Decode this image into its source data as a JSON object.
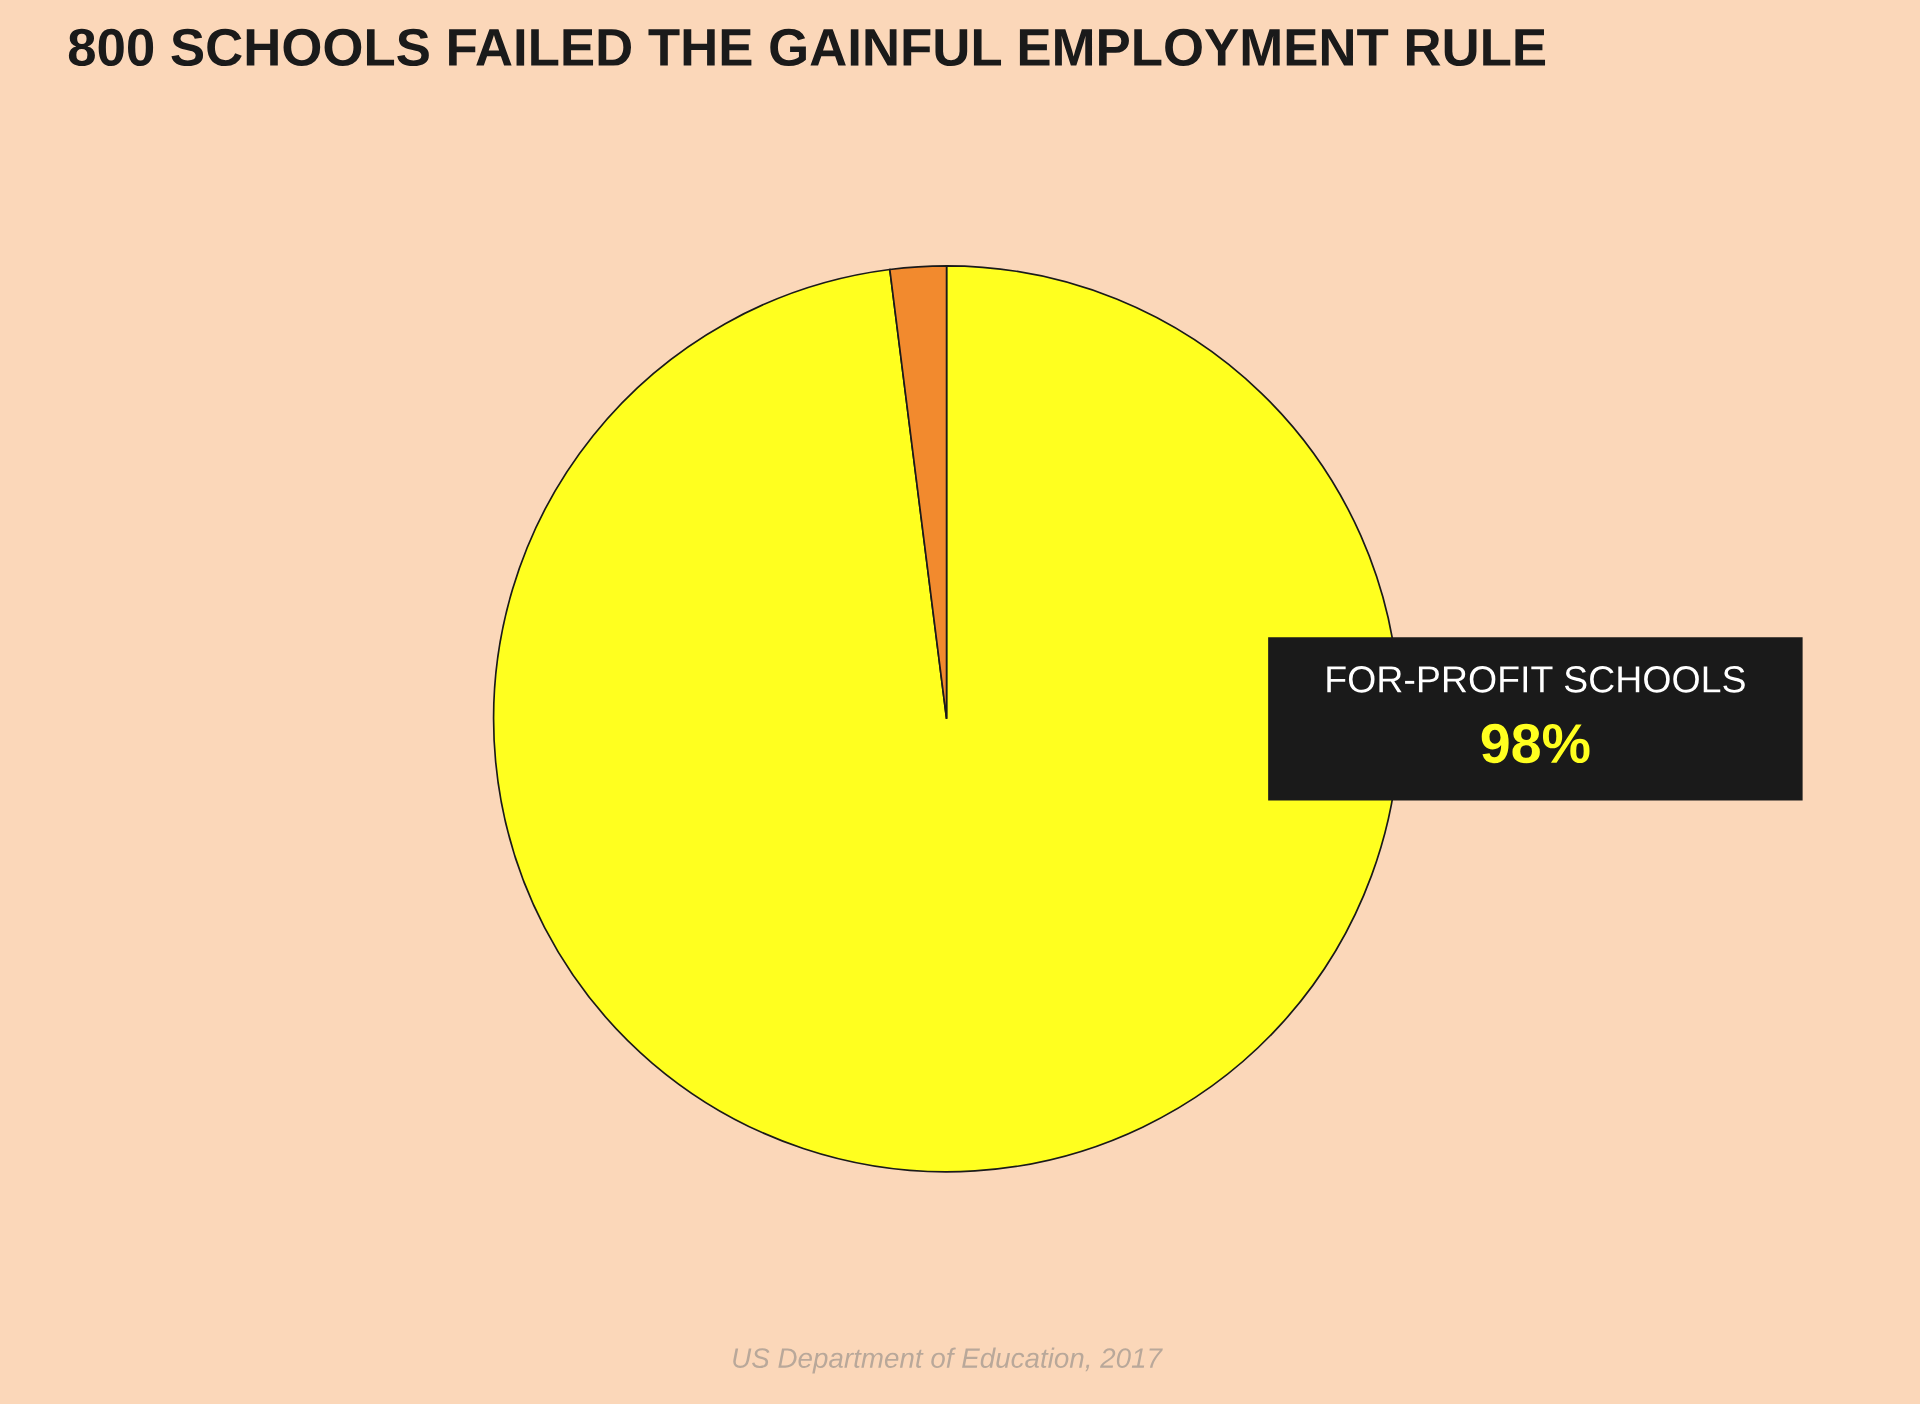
{
  "chart_data": {
    "type": "pie",
    "title": "800 SCHOOLS FAILED THE GAINFUL EMPLOYMENT RULE",
    "categories": [
      "FOR-PROFIT SCHOOLS",
      null
    ],
    "values": [
      98,
      2
    ],
    "colors": [
      "#ffff1f",
      "#f28a2e"
    ],
    "value_labels": [
      "98%",
      null
    ],
    "annotations": [
      "US Department of Education, 2017"
    ]
  }
}
